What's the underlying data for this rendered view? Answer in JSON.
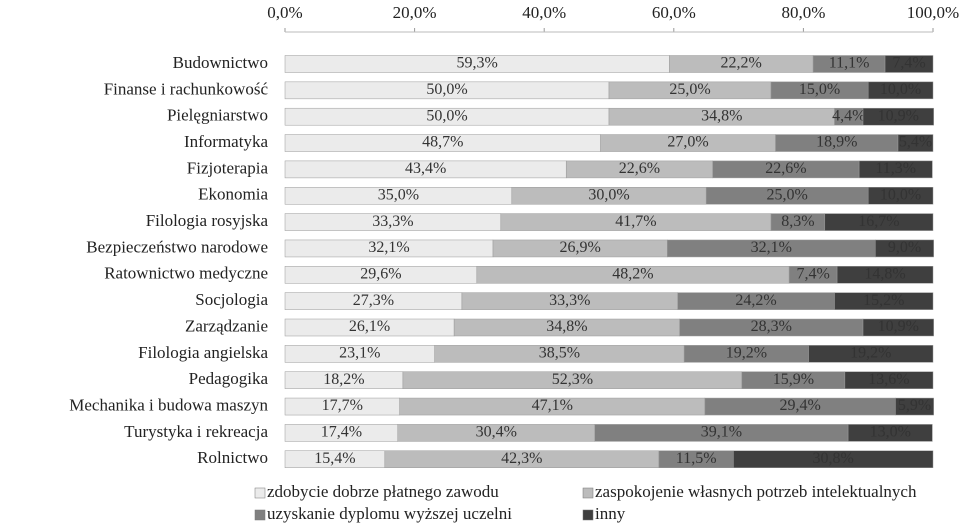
{
  "chart_data": {
    "type": "stacked-bar-horizontal",
    "categories": [
      "Budownictwo",
      "Finanse i rachunkowość",
      "Pielęgniarstwo",
      "Informatyka",
      "Fizjoterapia",
      "Ekonomia",
      "Filologia rosyjska",
      "Bezpieczeństwo narodowe",
      "Ratownictwo medyczne",
      "Socjologia",
      "Zarządzanie",
      "Filologia angielska",
      "Pedagogika",
      "Mechanika i budowa maszyn",
      "Turystyka i rekreacja",
      "Rolnictwo"
    ],
    "series": [
      {
        "name": "zdobycie dobrze płatnego zawodu",
        "color": "#ebebeb",
        "values": [
          59.3,
          50.0,
          50.0,
          48.7,
          43.4,
          35.0,
          33.3,
          32.1,
          29.6,
          27.3,
          26.1,
          23.1,
          18.2,
          17.7,
          17.4,
          15.4
        ],
        "value_labels": [
          "59,3%",
          "50,0%",
          "50,0%",
          "48,7%",
          "43,4%",
          "35,0%",
          "33,3%",
          "32,1%",
          "29,6%",
          "27,3%",
          "26,1%",
          "23,1%",
          "18,2%",
          "17,7%",
          "17,4%",
          "15,4%"
        ]
      },
      {
        "name": "zaspokojenie własnych potrzeb intelektualnych",
        "color": "#bcbcbc",
        "values": [
          22.2,
          25.0,
          34.8,
          27.0,
          22.6,
          30.0,
          41.7,
          26.9,
          48.2,
          33.3,
          34.8,
          38.5,
          52.3,
          47.1,
          30.4,
          42.3
        ],
        "value_labels": [
          "22,2%",
          "25,0%",
          "34,8%",
          "27,0%",
          "22,6%",
          "30,0%",
          "41,7%",
          "26,9%",
          "48,2%",
          "33,3%",
          "34,8%",
          "38,5%",
          "52,3%",
          "47,1%",
          "30,4%",
          "42,3%"
        ]
      },
      {
        "name": "uzyskanie dyplomu wyższej uczelni",
        "color": "#808080",
        "values": [
          11.1,
          15.0,
          4.4,
          18.9,
          22.6,
          25.0,
          8.3,
          32.1,
          7.4,
          24.2,
          28.3,
          19.2,
          15.9,
          29.4,
          39.1,
          11.5
        ],
        "value_labels": [
          "11,1%",
          "15,0%",
          "4,4%",
          "18,9%",
          "22,6%",
          "25,0%",
          "8,3%",
          "32,1%",
          "7,4%",
          "24,2%",
          "28,3%",
          "19,2%",
          "15,9%",
          "29,4%",
          "39,1%",
          "11,5%"
        ]
      },
      {
        "name": "inny",
        "color": "#3f3f3f",
        "values": [
          7.4,
          10.0,
          10.9,
          5.4,
          11.3,
          10.0,
          16.7,
          9.0,
          14.8,
          15.2,
          10.9,
          19.2,
          13.6,
          5.9,
          13.0,
          30.8
        ],
        "value_labels": [
          "7,4%",
          "10,0%",
          "10,9%",
          "5,4%",
          "11,3%",
          "10,0%",
          "16,7%",
          "9,0%",
          "14,8%",
          "15,2%",
          "10,9%",
          "19,2%",
          "13,6%",
          "5,9%",
          "13,0%",
          "30,8%"
        ]
      }
    ],
    "xlim": [
      0,
      100
    ],
    "xticks": [
      {
        "value": 0,
        "label": "0,0%"
      },
      {
        "value": 20,
        "label": "20,0%"
      },
      {
        "value": 40,
        "label": "40,0%"
      },
      {
        "value": 60,
        "label": "60,0%"
      },
      {
        "value": 80,
        "label": "80,0%"
      },
      {
        "value": 100,
        "label": "100,0%"
      }
    ],
    "legend": "bottom"
  }
}
